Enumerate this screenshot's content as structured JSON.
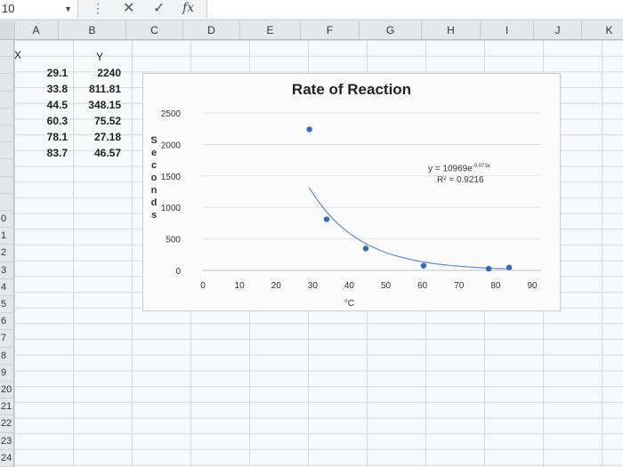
{
  "formula_bar": {
    "name_box": "10",
    "dots": "⋮",
    "cancel": "✕",
    "enter": "✓",
    "fx": "fx"
  },
  "columns": [
    "A",
    "B",
    "C",
    "D",
    "E",
    "F",
    "G",
    "H",
    "I",
    "J",
    "K"
  ],
  "rows": [
    "",
    "",
    "",
    "",
    "",
    "",
    "",
    "",
    "",
    "",
    "0",
    "1",
    "2",
    "3",
    "4",
    "5",
    "6",
    "7",
    "8",
    "9",
    "20",
    "21",
    "22",
    "23",
    "24"
  ],
  "headers": {
    "x": "X",
    "y": "Y"
  },
  "table": [
    {
      "x": "29.1",
      "y": "2240"
    },
    {
      "x": "33.8",
      "y": "811.81"
    },
    {
      "x": "44.5",
      "y": "348.15"
    },
    {
      "x": "60.3",
      "y": "75.52"
    },
    {
      "x": "78.1",
      "y": "27.18"
    },
    {
      "x": "83.7",
      "y": "46.57"
    }
  ],
  "chart_data": {
    "type": "scatter",
    "title": "Rate of Reaction",
    "xlabel": "°C",
    "ylabel": "Seconds",
    "xlim": [
      0,
      90
    ],
    "ylim": [
      0,
      2500
    ],
    "xticks": [
      0,
      10,
      20,
      30,
      40,
      50,
      60,
      70,
      80,
      90
    ],
    "yticks": [
      0,
      500,
      1000,
      1500,
      2000,
      2500
    ],
    "points": [
      {
        "x": 29.1,
        "y": 2240
      },
      {
        "x": 33.8,
        "y": 811.81
      },
      {
        "x": 44.5,
        "y": 348.15
      },
      {
        "x": 60.3,
        "y": 75.52
      },
      {
        "x": 78.1,
        "y": 27.18
      },
      {
        "x": 83.7,
        "y": 46.57
      }
    ],
    "trendline": {
      "type": "exponential",
      "a": 10969,
      "b": -0.073,
      "x_range": [
        29.1,
        83.7
      ],
      "equation": "y = 10969e",
      "exponent": "-0.073x",
      "r2": "R² = 0.9216"
    },
    "grid": "horizontal",
    "legend": "none",
    "marker_color": "#2e6bc6",
    "trend_color": "#5a8fd4"
  }
}
